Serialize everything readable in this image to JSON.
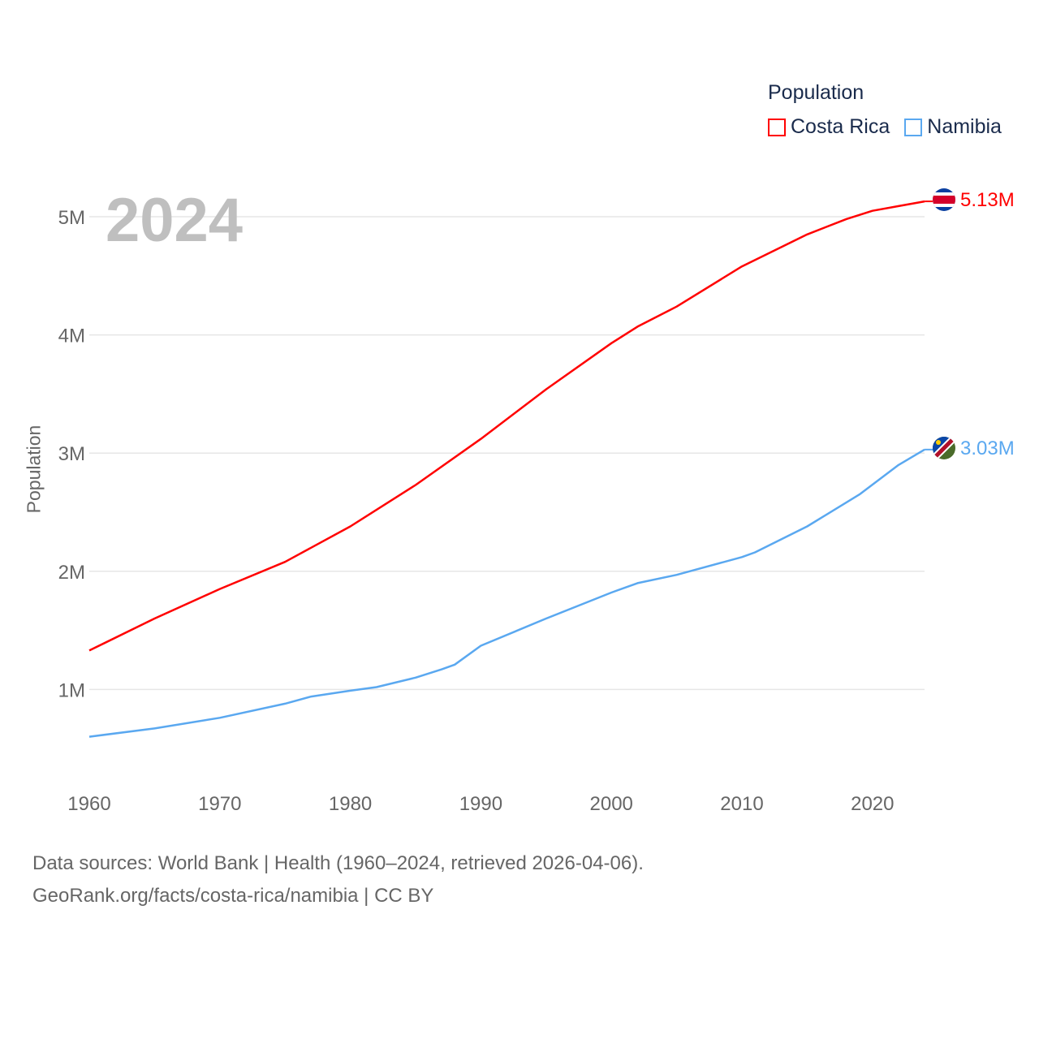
{
  "legend": {
    "title": "Population",
    "items": [
      "Costa Rica",
      "Namibia"
    ]
  },
  "year_label": "2024",
  "footer": {
    "line1": "Data sources: World Bank | Health (1960–2024, retrieved 2026-04-06).",
    "line2": "GeoRank.org/facts/costa-rica/namibia | CC BY"
  },
  "chart_data": {
    "type": "line",
    "title": "",
    "xlabel": "",
    "ylabel": "Population",
    "xlim": [
      1960,
      2024
    ],
    "ylim": [
      0,
      5.3
    ],
    "unit": "millions",
    "grid": true,
    "legend_position": "top-right",
    "x_ticks": [
      1960,
      1970,
      1980,
      1990,
      2000,
      2010,
      2020
    ],
    "x_tick_labels": [
      "1960",
      "1970",
      "1980",
      "1990",
      "2000",
      "2010",
      "2020"
    ],
    "y_ticks": [
      1,
      2,
      3,
      4,
      5
    ],
    "y_tick_labels": [
      "1M",
      "2M",
      "3M",
      "4M",
      "5M"
    ],
    "series": [
      {
        "name": "Costa Rica",
        "color": "#ff0000",
        "end_label": "5.13M",
        "points": [
          [
            1960,
            1.33
          ],
          [
            1965,
            1.6
          ],
          [
            1970,
            1.85
          ],
          [
            1975,
            2.08
          ],
          [
            1977,
            2.2
          ],
          [
            1980,
            2.38
          ],
          [
            1985,
            2.73
          ],
          [
            1990,
            3.12
          ],
          [
            1995,
            3.54
          ],
          [
            2000,
            3.93
          ],
          [
            2002,
            4.07
          ],
          [
            2005,
            4.24
          ],
          [
            2010,
            4.58
          ],
          [
            2015,
            4.85
          ],
          [
            2018,
            4.98
          ],
          [
            2020,
            5.05
          ],
          [
            2022,
            5.09
          ],
          [
            2024,
            5.13
          ]
        ]
      },
      {
        "name": "Namibia",
        "color": "#5aa8f0",
        "end_label": "3.03M",
        "points": [
          [
            1960,
            0.6
          ],
          [
            1965,
            0.67
          ],
          [
            1970,
            0.76
          ],
          [
            1975,
            0.88
          ],
          [
            1977,
            0.94
          ],
          [
            1980,
            0.99
          ],
          [
            1982,
            1.02
          ],
          [
            1985,
            1.1
          ],
          [
            1987,
            1.17
          ],
          [
            1988,
            1.21
          ],
          [
            1990,
            1.37
          ],
          [
            1995,
            1.6
          ],
          [
            2000,
            1.82
          ],
          [
            2002,
            1.9
          ],
          [
            2005,
            1.97
          ],
          [
            2010,
            2.12
          ],
          [
            2011,
            2.16
          ],
          [
            2015,
            2.38
          ],
          [
            2019,
            2.65
          ],
          [
            2022,
            2.9
          ],
          [
            2024,
            3.03
          ]
        ]
      }
    ]
  }
}
